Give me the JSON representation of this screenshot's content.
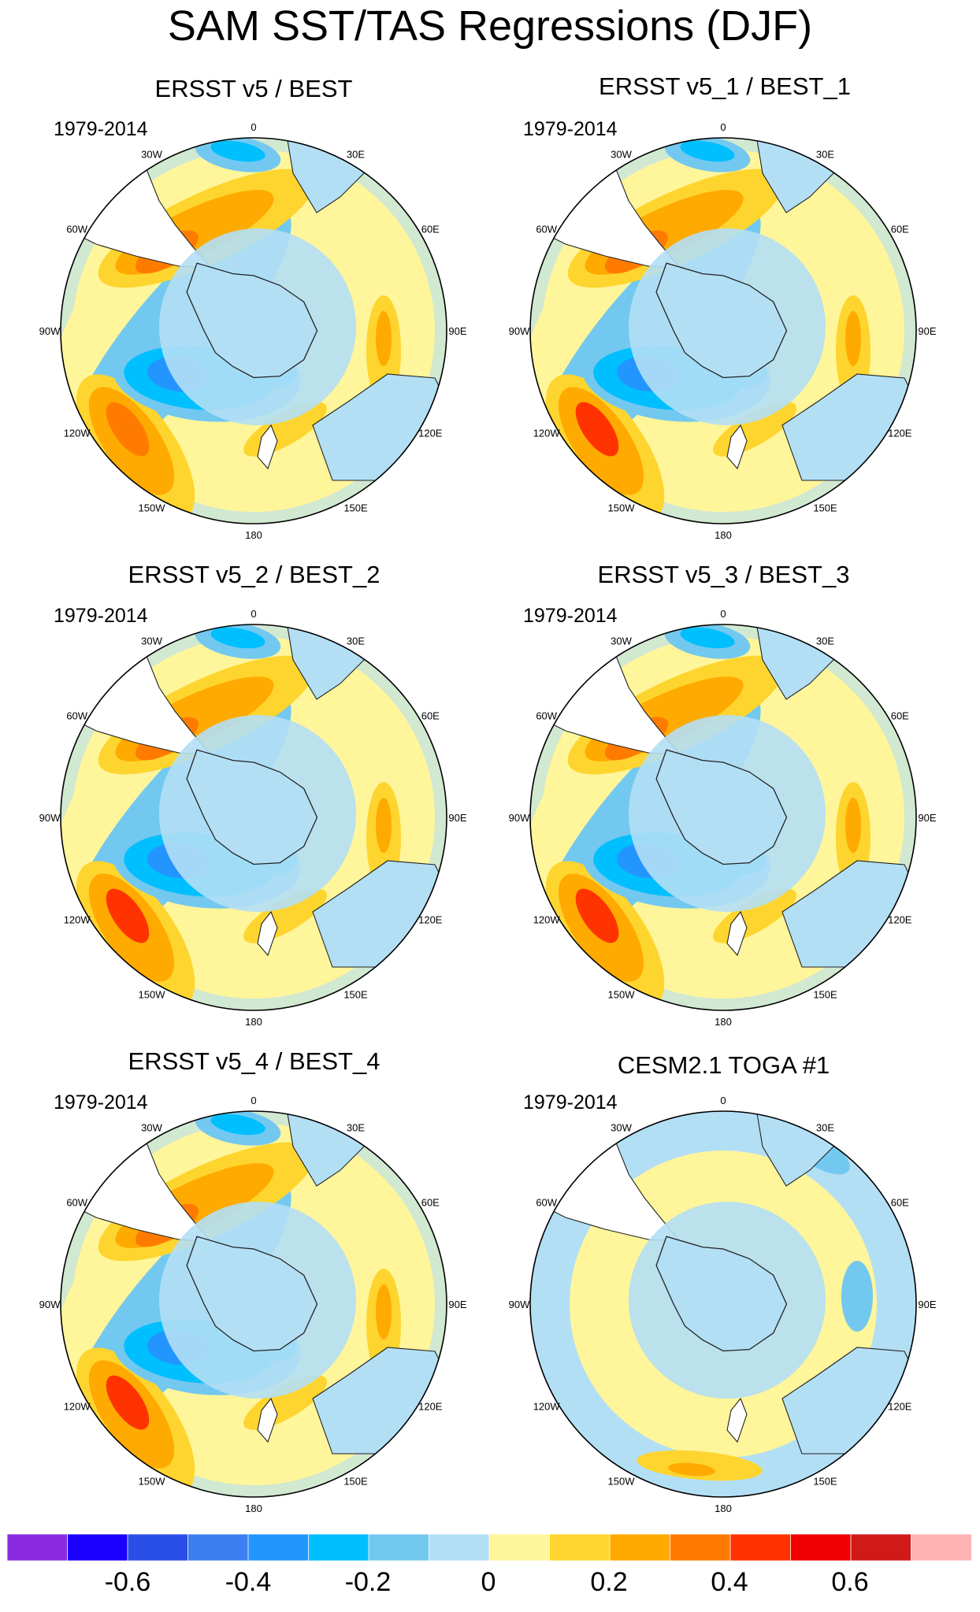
{
  "figure": {
    "title": "SAM SST/TAS Regressions (DJF)"
  },
  "panels": [
    {
      "title": "ERSST v5 / BEST",
      "period": "1979-2014"
    },
    {
      "title": "ERSST v5_1 / BEST_1",
      "period": "1979-2014"
    },
    {
      "title": "ERSST v5_2 / BEST_2",
      "period": "1979-2014"
    },
    {
      "title": "ERSST v5_3 / BEST_3",
      "period": "1979-2014"
    },
    {
      "title": "ERSST v5_4 / BEST_4",
      "period": "1979-2014"
    },
    {
      "title": "CESM2.1 TOGA #1",
      "period": "1979-2014"
    }
  ],
  "longitude_labels": [
    "0",
    "30E",
    "60E",
    "90E",
    "120E",
    "150E",
    "180",
    "150W",
    "120W",
    "90W",
    "60W",
    "30W"
  ],
  "colorbar": {
    "colors": [
      "#8a2be2",
      "#1a00ff",
      "#2a4ee8",
      "#3c7ff0",
      "#2395ff",
      "#00bfff",
      "#73c8f0",
      "#b3dff5",
      "#fff59b",
      "#fed52e",
      "#ffaa00",
      "#ff7b00",
      "#ff3300",
      "#f00000",
      "#d01a1a",
      "#ffb3b3"
    ],
    "tick_labels": [
      "-0.6",
      "-0.4",
      "-0.2",
      "0",
      "0.2",
      "0.4",
      "0.6"
    ]
  },
  "palette": {
    "light_blue": "#b3dff5",
    "mid_blue": "#73c8f0",
    "cyan": "#00bfff",
    "blue": "#2395ff",
    "deep_blue": "#3c7ff0",
    "yellow": "#fff59b",
    "gold": "#fed52e",
    "orange": "#ffaa00",
    "dark_orange": "#ff7b00",
    "red": "#ff3300",
    "land": "#ffffff"
  }
}
